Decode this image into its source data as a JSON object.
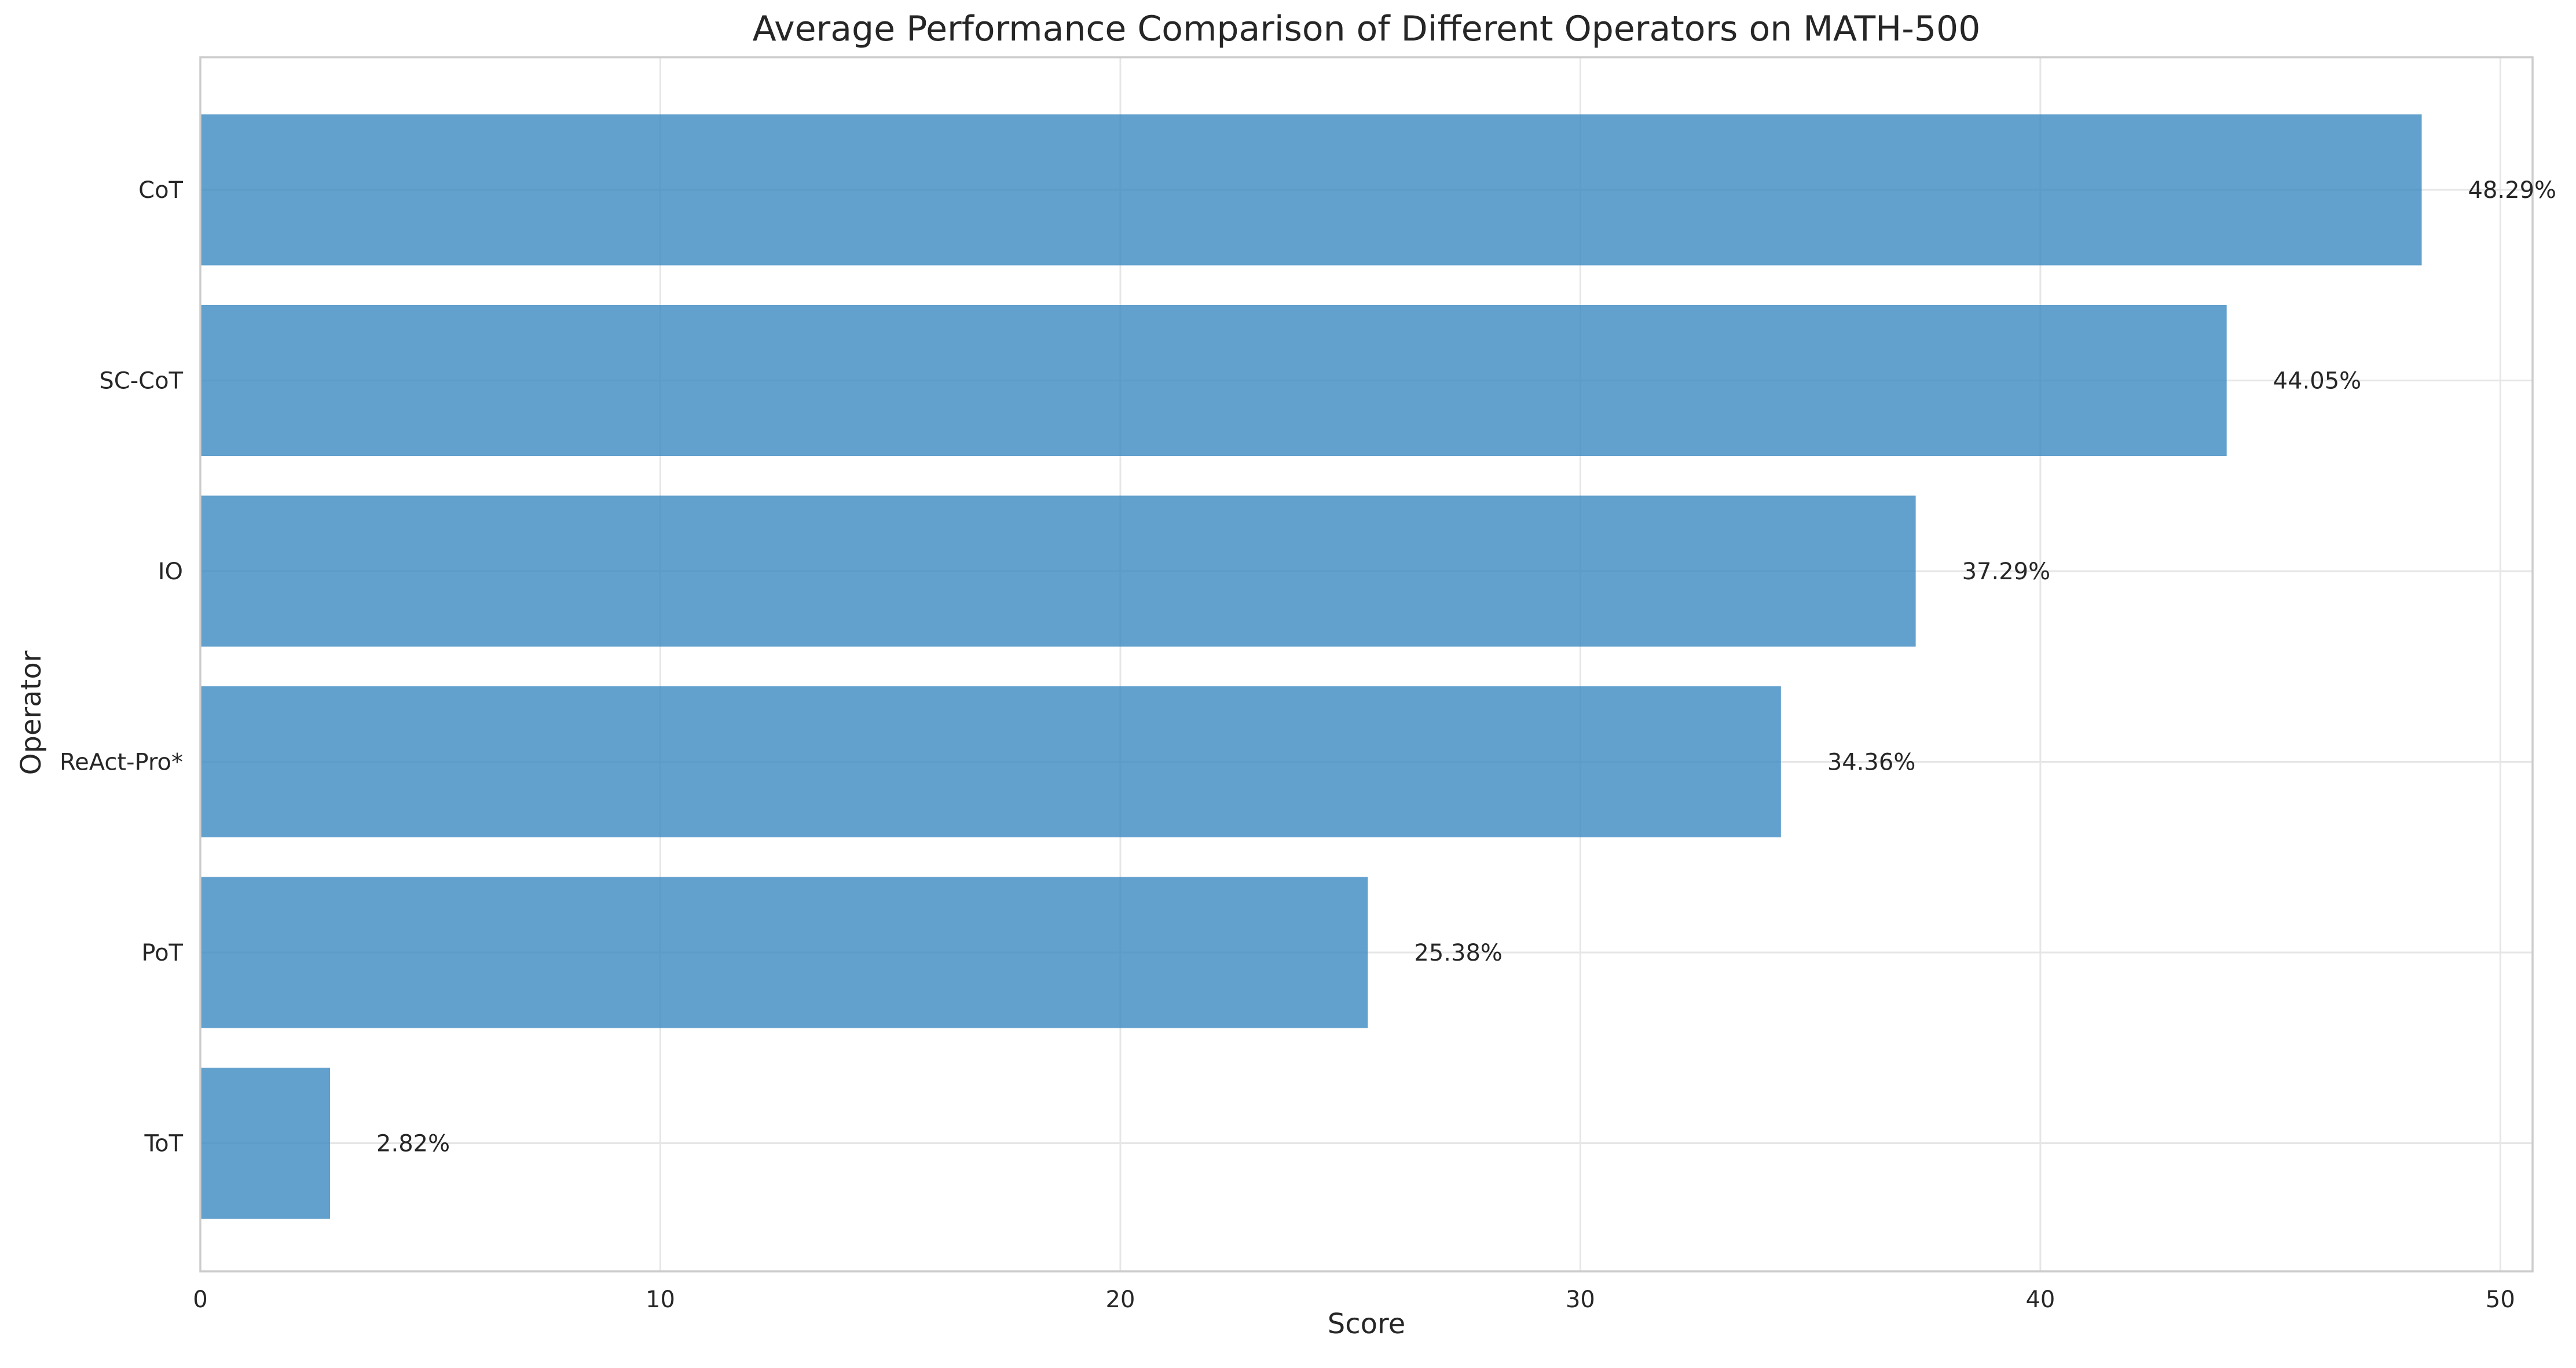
{
  "chart_data": {
    "type": "bar",
    "orientation": "horizontal",
    "title": "Average Performance Comparison of Different Operators on MATH-500",
    "xlabel": "Score",
    "ylabel": "Operator",
    "categories": [
      "CoT",
      "SC-CoT",
      "IO",
      "ReAct-Pro*",
      "PoT",
      "ToT"
    ],
    "values": [
      48.29,
      44.05,
      37.29,
      34.36,
      25.38,
      2.82
    ],
    "value_labels": [
      "48.29%",
      "44.05%",
      "37.29%",
      "34.36%",
      "25.38%",
      "2.82%"
    ],
    "xlim": [
      0,
      50.7
    ],
    "xticks": [
      0,
      10,
      20,
      30,
      40,
      50
    ],
    "grid": true,
    "bar_color": "#3b88c0"
  }
}
